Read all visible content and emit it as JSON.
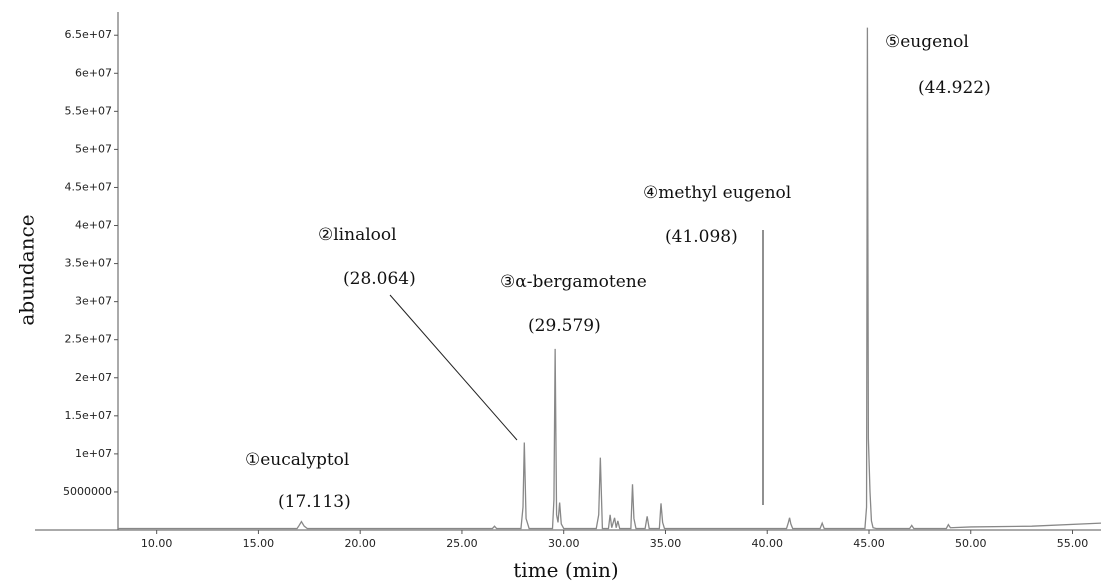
{
  "chart_data": {
    "type": "line",
    "xlabel": "time (min)",
    "ylabel": "abundance",
    "x": [
      8.1,
      16.9,
      17.0,
      17.113,
      17.25,
      17.4,
      26.5,
      26.6,
      26.7,
      27.9,
      28.0,
      28.064,
      28.15,
      28.3,
      29.45,
      29.52,
      29.579,
      29.65,
      29.72,
      29.8,
      29.88,
      30.0,
      31.6,
      31.72,
      31.8,
      31.9,
      32.2,
      32.28,
      32.36,
      32.5,
      32.58,
      32.66,
      32.75,
      33.3,
      33.38,
      33.45,
      33.55,
      34.0,
      34.1,
      34.2,
      34.7,
      34.78,
      34.86,
      34.95,
      40.95,
      41.04,
      41.098,
      41.16,
      41.25,
      42.6,
      42.7,
      42.8,
      44.8,
      44.88,
      44.922,
      44.97,
      45.05,
      45.12,
      45.2,
      45.35,
      47.0,
      47.1,
      47.2,
      48.8,
      48.9,
      49.0,
      50.0,
      53.0,
      56.4
    ],
    "series": [
      {
        "name": "abundance",
        "color": "#888888",
        "values": [
          200000,
          200000,
          600000,
          1100000,
          500000,
          200000,
          200000,
          500000,
          200000,
          200000,
          3000000,
          11500000,
          1500000,
          200000,
          200000,
          4000000,
          23800000,
          2000000,
          1000000,
          3600000,
          800000,
          200000,
          200000,
          2000000,
          9500000,
          200000,
          200000,
          2000000,
          300000,
          1600000,
          300000,
          1200000,
          200000,
          200000,
          6000000,
          1500000,
          200000,
          200000,
          1800000,
          200000,
          200000,
          3500000,
          1000000,
          200000,
          200000,
          1000000,
          1600000,
          800000,
          200000,
          200000,
          900000,
          200000,
          200000,
          3000000,
          66000000,
          12000000,
          5000000,
          1200000,
          300000,
          200000,
          200000,
          600000,
          200000,
          200000,
          700000,
          300000,
          400000,
          500000,
          900000
        ]
      }
    ],
    "xlim": [
      8.1,
      56.4
    ],
    "ylim": [
      0,
      67000000
    ],
    "xticks": [
      {
        "value": 10,
        "label": "10.00"
      },
      {
        "value": 15,
        "label": "15.00"
      },
      {
        "value": 20,
        "label": "20.00"
      },
      {
        "value": 25,
        "label": "25.00"
      },
      {
        "value": 30,
        "label": "30.00"
      },
      {
        "value": 35,
        "label": "35.00"
      },
      {
        "value": 40,
        "label": "40.00"
      },
      {
        "value": 45,
        "label": "45.00"
      },
      {
        "value": 50,
        "label": "50.00"
      },
      {
        "value": 55,
        "label": "55.00"
      }
    ],
    "yticks": [
      5000000,
      {
        "value": 10000000,
        "label": "1e+07"
      },
      {
        "value": 15000000,
        "label": "1.5e+07"
      },
      {
        "value": 20000000,
        "label": "2e+07"
      },
      {
        "value": 25000000,
        "label": "2.5e+07"
      },
      {
        "value": 30000000,
        "label": "3e+07"
      },
      {
        "value": 35000000,
        "label": "3.5e+07"
      },
      {
        "value": 40000000,
        "label": "4e+07"
      },
      {
        "value": 45000000,
        "label": "4.5e+07"
      },
      {
        "value": 50000000,
        "label": "5e+07"
      },
      {
        "value": 55000000,
        "label": "5.5e+07"
      },
      {
        "value": 60000000,
        "label": "6e+07"
      },
      {
        "value": 65000000,
        "label": "6.5e+07"
      }
    ],
    "annotations": [
      {
        "label": "①eucalyptol",
        "time": "(17.113)"
      },
      {
        "label": "②linalool",
        "time": "(28.064)"
      },
      {
        "label": "③α-bergamotene",
        "time": "(29.579)"
      },
      {
        "label": "④methyl eugenol",
        "time": "(41.098)"
      },
      {
        "label": "⑤eugenol",
        "time": "(44.922)"
      }
    ]
  }
}
